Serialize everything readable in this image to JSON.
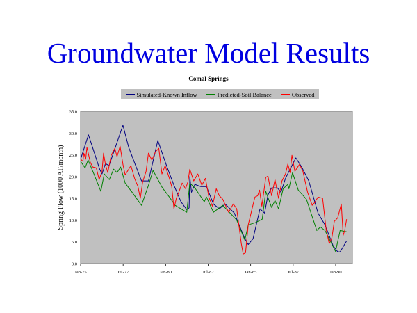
{
  "slide_title": "Groundwater Model Results",
  "chart_data": {
    "type": "line",
    "title": "Comal Springs",
    "xlabel": "",
    "ylabel": "Spring Flow (1000 AF/month)",
    "ylim": [
      0,
      35
    ],
    "xlim": [
      1975.0,
      1991.0
    ],
    "yticks": [
      0,
      5,
      10,
      15,
      20,
      25,
      30,
      35
    ],
    "ytick_labels": [
      "0.0",
      "5.0",
      "10.0",
      "15.0",
      "20.0",
      "25.0",
      "30.0",
      "35.0"
    ],
    "xticks": [
      1975.0,
      1977.5,
      1980.0,
      1982.5,
      1985.0,
      1987.5,
      1990.0
    ],
    "xtick_labels": [
      "Jan-75",
      "Jul-77",
      "Jan-80",
      "Jul-82",
      "Jan-85",
      "Jul-87",
      "Jan-90"
    ],
    "plot_background": "#c0c0c0",
    "legend_position": "top",
    "series": [
      {
        "name": "Simulated-Known Inflow",
        "color": "#000080",
        "points": [
          [
            1975.0,
            24
          ],
          [
            1975.46,
            29.6
          ],
          [
            1976.12,
            21.7
          ],
          [
            1976.26,
            20.6
          ],
          [
            1976.46,
            23
          ],
          [
            1976.67,
            22.5
          ],
          [
            1977.49,
            31.8
          ],
          [
            1977.83,
            26.7
          ],
          [
            1978.58,
            19
          ],
          [
            1978.99,
            19
          ],
          [
            1979.54,
            28.3
          ],
          [
            1980.08,
            22.2
          ],
          [
            1980.49,
            18
          ],
          [
            1980.9,
            14.2
          ],
          [
            1981.24,
            12.4
          ],
          [
            1981.38,
            12.8
          ],
          [
            1981.42,
            20
          ],
          [
            1981.52,
            16.4
          ],
          [
            1981.72,
            18.2
          ],
          [
            1982.06,
            17.7
          ],
          [
            1982.4,
            17.7
          ],
          [
            1982.81,
            13.7
          ],
          [
            1983.16,
            12.6
          ],
          [
            1983.5,
            13.7
          ],
          [
            1984.04,
            11.6
          ],
          [
            1984.66,
            5.7
          ],
          [
            1984.86,
            4.4
          ],
          [
            1985.14,
            5.7
          ],
          [
            1985.55,
            12.6
          ],
          [
            1985.82,
            11.6
          ],
          [
            1986.02,
            15.8
          ],
          [
            1986.23,
            17.4
          ],
          [
            1986.57,
            17.4
          ],
          [
            1986.78,
            16.4
          ],
          [
            1987.05,
            19.6
          ],
          [
            1987.66,
            24.3
          ],
          [
            1988.0,
            22.2
          ],
          [
            1988.42,
            19
          ],
          [
            1988.96,
            11.6
          ],
          [
            1989.37,
            8.9
          ],
          [
            1989.85,
            4.1
          ],
          [
            1990.12,
            2.7
          ],
          [
            1990.26,
            2.7
          ],
          [
            1990.64,
            5.2
          ]
        ]
      },
      {
        "name": "Predicted-Soil Balance",
        "color": "#008000",
        "points": [
          [
            1975.0,
            23.5
          ],
          [
            1975.26,
            22
          ],
          [
            1975.44,
            23.8
          ],
          [
            1975.78,
            20.6
          ],
          [
            1976.19,
            16.6
          ],
          [
            1976.39,
            20.6
          ],
          [
            1976.69,
            19.3
          ],
          [
            1976.94,
            21.7
          ],
          [
            1977.14,
            20.9
          ],
          [
            1977.35,
            22.2
          ],
          [
            1977.62,
            18.5
          ],
          [
            1978.03,
            16.4
          ],
          [
            1978.58,
            13.4
          ],
          [
            1978.99,
            18
          ],
          [
            1979.26,
            21.4
          ],
          [
            1979.81,
            17.4
          ],
          [
            1980.22,
            15.3
          ],
          [
            1980.56,
            13.4
          ],
          [
            1981.24,
            11.8
          ],
          [
            1981.42,
            18.5
          ],
          [
            1981.72,
            17.4
          ],
          [
            1982.27,
            14.2
          ],
          [
            1982.4,
            15.3
          ],
          [
            1982.81,
            11.8
          ],
          [
            1983.36,
            13.4
          ],
          [
            1984.18,
            10
          ],
          [
            1984.66,
            5.4
          ],
          [
            1984.86,
            8.9
          ],
          [
            1985.27,
            9.4
          ],
          [
            1985.68,
            10.2
          ],
          [
            1985.89,
            16.6
          ],
          [
            1986.23,
            12.9
          ],
          [
            1986.43,
            14.5
          ],
          [
            1986.64,
            12.6
          ],
          [
            1986.91,
            17.2
          ],
          [
            1987.19,
            18.2
          ],
          [
            1987.25,
            17.2
          ],
          [
            1987.46,
            20.9
          ],
          [
            1987.8,
            16.9
          ],
          [
            1988.28,
            14.8
          ],
          [
            1988.89,
            7.6
          ],
          [
            1989.1,
            8.4
          ],
          [
            1989.37,
            7.6
          ],
          [
            1989.99,
            2.8
          ],
          [
            1990.26,
            7.6
          ],
          [
            1990.64,
            7.3
          ]
        ]
      },
      {
        "name": "Observed",
        "color": "#ff0000",
        "points": [
          [
            1975.0,
            24
          ],
          [
            1975.14,
            23.5
          ],
          [
            1975.19,
            25.4
          ],
          [
            1975.3,
            24
          ],
          [
            1975.37,
            26.7
          ],
          [
            1975.57,
            23.3
          ],
          [
            1975.71,
            22.2
          ],
          [
            1975.92,
            22
          ],
          [
            1976.09,
            19.3
          ],
          [
            1976.26,
            21.2
          ],
          [
            1976.35,
            25.4
          ],
          [
            1976.46,
            22.8
          ],
          [
            1976.6,
            20.9
          ],
          [
            1976.8,
            24.9
          ],
          [
            1977.01,
            26.5
          ],
          [
            1977.14,
            24.6
          ],
          [
            1977.32,
            27
          ],
          [
            1977.49,
            22.8
          ],
          [
            1977.62,
            20.4
          ],
          [
            1977.96,
            22.5
          ],
          [
            1978.17,
            19.6
          ],
          [
            1978.37,
            17.7
          ],
          [
            1978.51,
            15
          ],
          [
            1978.65,
            18.8
          ],
          [
            1978.85,
            21.2
          ],
          [
            1978.99,
            25.4
          ],
          [
            1979.19,
            23.8
          ],
          [
            1979.4,
            25.7
          ],
          [
            1979.6,
            26.5
          ],
          [
            1979.78,
            20.6
          ],
          [
            1979.97,
            22.5
          ],
          [
            1980.22,
            19.6
          ],
          [
            1980.36,
            17.7
          ],
          [
            1980.49,
            12.6
          ],
          [
            1980.63,
            15
          ],
          [
            1980.77,
            16.4
          ],
          [
            1980.97,
            18.5
          ],
          [
            1981.17,
            17.2
          ],
          [
            1981.31,
            18.8
          ],
          [
            1981.42,
            21.7
          ],
          [
            1981.65,
            19
          ],
          [
            1981.89,
            20.6
          ],
          [
            1982.13,
            18
          ],
          [
            1982.34,
            19.6
          ],
          [
            1982.54,
            15.3
          ],
          [
            1982.75,
            13.2
          ],
          [
            1982.98,
            17.2
          ],
          [
            1983.16,
            15.6
          ],
          [
            1983.36,
            14.8
          ],
          [
            1983.7,
            11.8
          ],
          [
            1983.98,
            13.7
          ],
          [
            1984.18,
            12.6
          ],
          [
            1984.45,
            4.6
          ],
          [
            1984.56,
            2.2
          ],
          [
            1984.7,
            2.5
          ],
          [
            1984.86,
            8.9
          ],
          [
            1985.07,
            12.4
          ],
          [
            1985.25,
            15.3
          ],
          [
            1985.41,
            15.6
          ],
          [
            1985.52,
            16.9
          ],
          [
            1985.66,
            13.2
          ],
          [
            1985.89,
            19.8
          ],
          [
            1986.02,
            20.1
          ],
          [
            1986.23,
            15.6
          ],
          [
            1986.43,
            19.3
          ],
          [
            1986.64,
            15
          ],
          [
            1986.84,
            19
          ],
          [
            1987.05,
            20.6
          ],
          [
            1987.19,
            22.9
          ],
          [
            1987.32,
            20.9
          ],
          [
            1987.43,
            24.9
          ],
          [
            1987.6,
            21.2
          ],
          [
            1987.87,
            22.8
          ],
          [
            1988.07,
            21.2
          ],
          [
            1988.35,
            16.4
          ],
          [
            1988.62,
            13.4
          ],
          [
            1988.76,
            14
          ],
          [
            1988.96,
            15.3
          ],
          [
            1989.23,
            15
          ],
          [
            1989.44,
            7.8
          ],
          [
            1989.62,
            4.6
          ],
          [
            1989.78,
            6
          ],
          [
            1989.92,
            9.7
          ],
          [
            1990.12,
            10.5
          ],
          [
            1990.33,
            13.7
          ],
          [
            1990.44,
            6.5
          ],
          [
            1990.53,
            7.6
          ],
          [
            1990.64,
            10.2
          ]
        ]
      }
    ]
  }
}
